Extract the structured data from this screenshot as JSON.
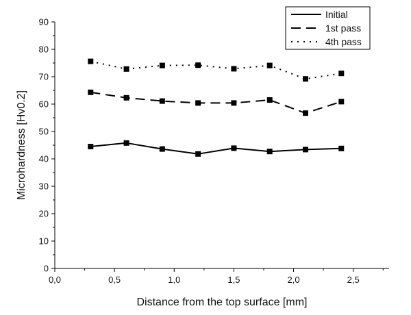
{
  "chart_data": {
    "type": "line",
    "xlabel": "Distance from the top surface [mm]",
    "ylabel": "Microhardness [Hv0.2]",
    "xlim": [
      0.0,
      2.8
    ],
    "ylim": [
      0,
      90
    ],
    "x_ticks": [
      0.0,
      0.5,
      1.0,
      1.5,
      2.0,
      2.5
    ],
    "x_tick_labels": [
      "0,0",
      "0,5",
      "1,0",
      "1,5",
      "2,0",
      "2,5"
    ],
    "y_ticks": [
      0,
      10,
      20,
      30,
      40,
      50,
      60,
      70,
      80,
      90
    ],
    "y_tick_labels": [
      "0",
      "10",
      "20",
      "30",
      "40",
      "50",
      "60",
      "70",
      "80",
      "90"
    ],
    "grid": false,
    "legend_position": "top-right",
    "x": [
      0.3,
      0.6,
      0.9,
      1.2,
      1.5,
      1.8,
      2.1,
      2.4
    ],
    "series": [
      {
        "name": "Initial",
        "line_style": "solid",
        "marker": "square",
        "values": [
          44.5,
          45.8,
          43.6,
          41.8,
          43.9,
          42.7,
          43.4,
          43.8
        ]
      },
      {
        "name": "1st pass",
        "line_style": "dashed",
        "marker": "square",
        "values": [
          64.3,
          62.3,
          61.1,
          60.4,
          60.4,
          61.5,
          56.7,
          60.9
        ]
      },
      {
        "name": "4th pass",
        "line_style": "dotted",
        "marker": "square",
        "values": [
          75.6,
          72.8,
          74.1,
          74.2,
          72.9,
          74.1,
          69.2,
          71.2
        ]
      }
    ],
    "colors": {
      "line": "#000000",
      "marker": "#000000"
    }
  }
}
